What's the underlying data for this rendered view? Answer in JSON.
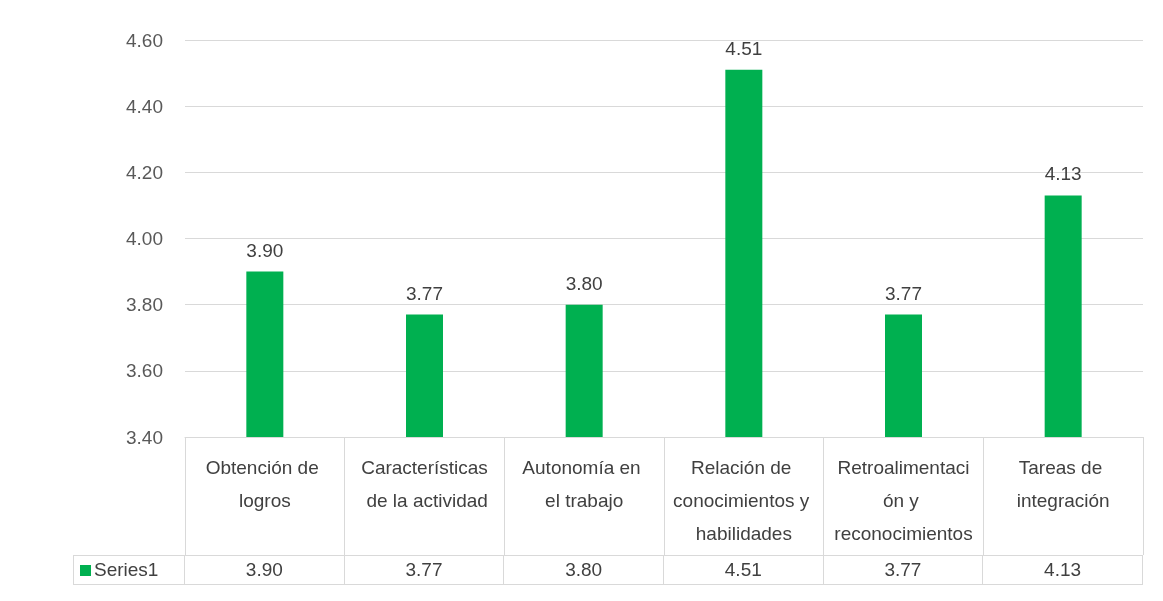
{
  "chart_data": {
    "type": "bar",
    "categories": [
      "Obtención de logros",
      "Características de la actividad",
      "Autonomía en el trabajo",
      "Relación de conocimientos y habilidades",
      "Retroalimentación y reconocimientos",
      "Tareas de integración"
    ],
    "series": [
      {
        "name": "Series1",
        "color": "#00b050",
        "values": [
          3.9,
          3.77,
          3.8,
          4.51,
          3.77,
          4.13
        ],
        "value_labels": [
          "3.90",
          "3.77",
          "3.80",
          "4.51",
          "3.77",
          "4.13"
        ]
      }
    ],
    "ylim": [
      3.4,
      4.6
    ],
    "yticks": [
      {
        "value": 3.4,
        "label": "3.40"
      },
      {
        "value": 3.6,
        "label": "3.60"
      },
      {
        "value": 3.8,
        "label": "3.80"
      },
      {
        "value": 4.0,
        "label": "4.00"
      },
      {
        "value": 4.2,
        "label": "4.20"
      },
      {
        "value": 4.4,
        "label": "4.40"
      },
      {
        "value": 4.6,
        "label": "4.60"
      }
    ],
    "grid": "y",
    "legend": "bottom left"
  }
}
